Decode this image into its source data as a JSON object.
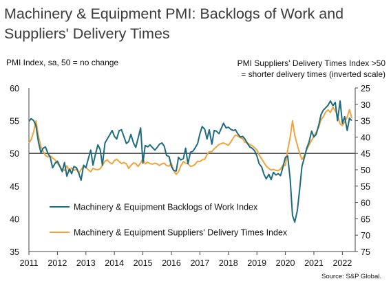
{
  "page": {
    "title": "Machinery & Equipment PMI: Backlogs of Work and Suppliers' Delivery Times",
    "left_axis_label": "PMI Index, sa, 50 = no change",
    "right_axis_label_line1": "PMI Suppliers' Delivery Times Index >50",
    "right_axis_label_line2": "= shorter delivery times (inverted scale)",
    "source": "Source: S&P Global."
  },
  "chart_data": {
    "type": "line",
    "title": "Machinery & Equipment PMI: Backlogs of Work and Suppliers' Delivery Times",
    "ylabel": "PMI Index, sa, 50 = no change",
    "ylabel_right": "PMI Suppliers' Delivery Times Index >50 = shorter delivery times (inverted scale)",
    "x_ticks": [
      "2011",
      "2012",
      "2013",
      "2014",
      "2015",
      "2016",
      "2017",
      "2018",
      "2019",
      "2020",
      "2021",
      "2022"
    ],
    "xlim": [
      2011.0,
      2022.45
    ],
    "ylim": [
      35,
      60
    ],
    "y_ticks": [
      35,
      40,
      45,
      50,
      55,
      60
    ],
    "ylim_right": [
      75,
      25
    ],
    "y_ticks_right": [
      25,
      30,
      35,
      40,
      45,
      50,
      55,
      60,
      65,
      70,
      75
    ],
    "reference_line": 50,
    "legend_position": "lower-left",
    "series": [
      {
        "name": "Machinery & Equipment Backlogs of Work Index",
        "color": "#1c6b7e",
        "axis": "left",
        "points": [
          [
            2011.0,
            54.9
          ],
          [
            2011.08,
            55.3
          ],
          [
            2011.17,
            55.0
          ],
          [
            2011.25,
            54.2
          ],
          [
            2011.33,
            51.8
          ],
          [
            2011.42,
            50.1
          ],
          [
            2011.5,
            50.8
          ],
          [
            2011.58,
            51.0
          ],
          [
            2011.67,
            50.0
          ],
          [
            2011.75,
            49.4
          ],
          [
            2011.83,
            47.8
          ],
          [
            2011.92,
            48.5
          ],
          [
            2012.0,
            48.8
          ],
          [
            2012.08,
            48.1
          ],
          [
            2012.17,
            47.2
          ],
          [
            2012.25,
            48.6
          ],
          [
            2012.33,
            46.5
          ],
          [
            2012.42,
            47.6
          ],
          [
            2012.5,
            46.9
          ],
          [
            2012.58,
            48.0
          ],
          [
            2012.67,
            47.8
          ],
          [
            2012.75,
            47.0
          ],
          [
            2012.83,
            45.9
          ],
          [
            2012.92,
            48.2
          ],
          [
            2013.0,
            47.8
          ],
          [
            2013.08,
            49.1
          ],
          [
            2013.17,
            50.5
          ],
          [
            2013.25,
            48.2
          ],
          [
            2013.33,
            49.8
          ],
          [
            2013.42,
            51.3
          ],
          [
            2013.5,
            50.6
          ],
          [
            2013.58,
            48.2
          ],
          [
            2013.67,
            51.6
          ],
          [
            2013.75,
            52.2
          ],
          [
            2013.83,
            52.8
          ],
          [
            2013.92,
            53.5
          ],
          [
            2014.0,
            52.6
          ],
          [
            2014.08,
            52.2
          ],
          [
            2014.17,
            53.5
          ],
          [
            2014.25,
            53.6
          ],
          [
            2014.33,
            52.6
          ],
          [
            2014.42,
            51.5
          ],
          [
            2014.5,
            51.8
          ],
          [
            2014.58,
            52.9
          ],
          [
            2014.67,
            51.6
          ],
          [
            2014.75,
            50.9
          ],
          [
            2014.83,
            52.3
          ],
          [
            2014.92,
            53.9
          ],
          [
            2015.0,
            48.5
          ],
          [
            2015.08,
            51.2
          ],
          [
            2015.17,
            51.0
          ],
          [
            2015.25,
            51.3
          ],
          [
            2015.33,
            50.9
          ],
          [
            2015.42,
            50.5
          ],
          [
            2015.5,
            50.9
          ],
          [
            2015.58,
            51.4
          ],
          [
            2015.67,
            51.6
          ],
          [
            2015.75,
            51.1
          ],
          [
            2015.83,
            49.7
          ],
          [
            2015.92,
            49.5
          ],
          [
            2016.0,
            48.0
          ],
          [
            2016.08,
            47.4
          ],
          [
            2016.17,
            47.3
          ],
          [
            2016.25,
            49.4
          ],
          [
            2016.33,
            49.0
          ],
          [
            2016.42,
            49.2
          ],
          [
            2016.5,
            50.8
          ],
          [
            2016.58,
            48.4
          ],
          [
            2016.67,
            50.2
          ],
          [
            2016.75,
            50.3
          ],
          [
            2016.83,
            50.8
          ],
          [
            2016.92,
            51.5
          ],
          [
            2017.0,
            53.0
          ],
          [
            2017.08,
            54.1
          ],
          [
            2017.17,
            53.7
          ],
          [
            2017.25,
            52.2
          ],
          [
            2017.33,
            53.6
          ],
          [
            2017.42,
            51.4
          ],
          [
            2017.5,
            53.5
          ],
          [
            2017.58,
            53.4
          ],
          [
            2017.67,
            53.0
          ],
          [
            2017.75,
            53.8
          ],
          [
            2017.83,
            54.6
          ],
          [
            2017.92,
            53.9
          ],
          [
            2018.0,
            54.0
          ],
          [
            2018.08,
            53.7
          ],
          [
            2018.17,
            53.5
          ],
          [
            2018.25,
            53.6
          ],
          [
            2018.33,
            53.0
          ],
          [
            2018.42,
            52.5
          ],
          [
            2018.5,
            52.6
          ],
          [
            2018.58,
            52.2
          ],
          [
            2018.67,
            51.5
          ],
          [
            2018.75,
            51.0
          ],
          [
            2018.83,
            50.8
          ],
          [
            2018.92,
            50.4
          ],
          [
            2019.0,
            49.6
          ],
          [
            2019.08,
            48.4
          ],
          [
            2019.17,
            47.9
          ],
          [
            2019.25,
            46.8
          ],
          [
            2019.33,
            46.1
          ],
          [
            2019.42,
            46.8
          ],
          [
            2019.5,
            46.0
          ],
          [
            2019.58,
            47.1
          ],
          [
            2019.67,
            46.7
          ],
          [
            2019.75,
            46.9
          ],
          [
            2019.83,
            46.6
          ],
          [
            2019.92,
            48.0
          ],
          [
            2020.0,
            49.4
          ],
          [
            2020.08,
            49.6
          ],
          [
            2020.17,
            46.0
          ],
          [
            2020.25,
            40.5
          ],
          [
            2020.33,
            39.5
          ],
          [
            2020.42,
            41.3
          ],
          [
            2020.5,
            44.5
          ],
          [
            2020.58,
            48.0
          ],
          [
            2020.67,
            49.4
          ],
          [
            2020.75,
            50.8
          ],
          [
            2020.83,
            51.7
          ],
          [
            2020.92,
            53.4
          ],
          [
            2021.0,
            52.5
          ],
          [
            2021.08,
            52.9
          ],
          [
            2021.17,
            54.3
          ],
          [
            2021.25,
            55.9
          ],
          [
            2021.33,
            56.6
          ],
          [
            2021.42,
            57.0
          ],
          [
            2021.5,
            57.4
          ],
          [
            2021.58,
            58.0
          ],
          [
            2021.67,
            57.3
          ],
          [
            2021.75,
            57.8
          ],
          [
            2021.83,
            55.0
          ],
          [
            2021.92,
            58.0
          ],
          [
            2022.0,
            54.6
          ],
          [
            2022.08,
            55.6
          ],
          [
            2022.17,
            53.5
          ],
          [
            2022.25,
            55.4
          ],
          [
            2022.33,
            55.0
          ]
        ]
      },
      {
        "name": "Machinery & Equipment Suppliers' Delivery Times Index",
        "color": "#f0a33b",
        "axis": "right",
        "points": [
          [
            2011.0,
            41.8
          ],
          [
            2011.08,
            40.8
          ],
          [
            2011.17,
            38.3
          ],
          [
            2011.25,
            35.0
          ],
          [
            2011.33,
            39.6
          ],
          [
            2011.42,
            42.9
          ],
          [
            2011.5,
            44.4
          ],
          [
            2011.58,
            45.6
          ],
          [
            2011.67,
            46.1
          ],
          [
            2011.75,
            45.8
          ],
          [
            2011.83,
            46.4
          ],
          [
            2011.92,
            47.0
          ],
          [
            2012.0,
            48.0
          ],
          [
            2012.08,
            49.0
          ],
          [
            2012.17,
            49.9
          ],
          [
            2012.25,
            50.2
          ],
          [
            2012.33,
            48.8
          ],
          [
            2012.42,
            50.5
          ],
          [
            2012.5,
            49.4
          ],
          [
            2012.58,
            50.2
          ],
          [
            2012.67,
            49.8
          ],
          [
            2012.75,
            51.1
          ],
          [
            2012.83,
            50.0
          ],
          [
            2012.92,
            48.9
          ],
          [
            2013.0,
            49.3
          ],
          [
            2013.08,
            50.0
          ],
          [
            2013.17,
            50.6
          ],
          [
            2013.25,
            49.6
          ],
          [
            2013.33,
            49.9
          ],
          [
            2013.42,
            50.0
          ],
          [
            2013.5,
            49.7
          ],
          [
            2013.58,
            48.7
          ],
          [
            2013.67,
            47.4
          ],
          [
            2013.75,
            47.0
          ],
          [
            2013.83,
            47.8
          ],
          [
            2013.92,
            48.2
          ],
          [
            2014.0,
            47.2
          ],
          [
            2014.08,
            46.8
          ],
          [
            2014.17,
            47.5
          ],
          [
            2014.25,
            48.1
          ],
          [
            2014.33,
            47.8
          ],
          [
            2014.42,
            48.2
          ],
          [
            2014.5,
            49.6
          ],
          [
            2014.58,
            48.7
          ],
          [
            2014.67,
            47.9
          ],
          [
            2014.75,
            48.1
          ],
          [
            2014.83,
            49.0
          ],
          [
            2014.92,
            47.9
          ],
          [
            2015.0,
            46.6
          ],
          [
            2015.08,
            48.2
          ],
          [
            2015.17,
            47.7
          ],
          [
            2015.25,
            48.1
          ],
          [
            2015.33,
            48.3
          ],
          [
            2015.42,
            48.0
          ],
          [
            2015.5,
            48.2
          ],
          [
            2015.58,
            48.7
          ],
          [
            2015.67,
            48.2
          ],
          [
            2015.75,
            48.0
          ],
          [
            2015.83,
            48.7
          ],
          [
            2015.92,
            48.9
          ],
          [
            2016.0,
            48.0
          ],
          [
            2016.08,
            50.3
          ],
          [
            2016.17,
            51.4
          ],
          [
            2016.25,
            50.6
          ],
          [
            2016.33,
            48.9
          ],
          [
            2016.42,
            47.5
          ],
          [
            2016.5,
            48.0
          ],
          [
            2016.58,
            48.1
          ],
          [
            2016.67,
            49.0
          ],
          [
            2016.75,
            48.8
          ],
          [
            2016.83,
            48.4
          ],
          [
            2016.92,
            47.4
          ],
          [
            2017.0,
            47.5
          ],
          [
            2017.08,
            47.0
          ],
          [
            2017.17,
            46.8
          ],
          [
            2017.25,
            45.4
          ],
          [
            2017.33,
            44.5
          ],
          [
            2017.42,
            44.5
          ],
          [
            2017.5,
            43.6
          ],
          [
            2017.58,
            43.0
          ],
          [
            2017.67,
            42.3
          ],
          [
            2017.75,
            42.0
          ],
          [
            2017.83,
            41.8
          ],
          [
            2017.92,
            42.2
          ],
          [
            2018.0,
            42.5
          ],
          [
            2018.08,
            41.6
          ],
          [
            2018.17,
            40.3
          ],
          [
            2018.25,
            39.4
          ],
          [
            2018.33,
            39.7
          ],
          [
            2018.42,
            40.2
          ],
          [
            2018.5,
            40.5
          ],
          [
            2018.58,
            41.6
          ],
          [
            2018.67,
            41.8
          ],
          [
            2018.75,
            42.3
          ],
          [
            2018.83,
            42.6
          ],
          [
            2018.92,
            43.3
          ],
          [
            2019.0,
            44.0
          ],
          [
            2019.08,
            45.5
          ],
          [
            2019.17,
            46.7
          ],
          [
            2019.25,
            47.8
          ],
          [
            2019.33,
            48.9
          ],
          [
            2019.42,
            49.6
          ],
          [
            2019.5,
            50.1
          ],
          [
            2019.58,
            49.9
          ],
          [
            2019.67,
            50.2
          ],
          [
            2019.75,
            50.3
          ],
          [
            2019.83,
            49.8
          ],
          [
            2019.92,
            48.5
          ],
          [
            2020.0,
            48.7
          ],
          [
            2020.08,
            44.0
          ],
          [
            2020.17,
            40.0
          ],
          [
            2020.25,
            35.0
          ],
          [
            2020.33,
            39.5
          ],
          [
            2020.42,
            42.5
          ],
          [
            2020.5,
            45.0
          ],
          [
            2020.58,
            46.9
          ],
          [
            2020.67,
            45.6
          ],
          [
            2020.75,
            43.8
          ],
          [
            2020.83,
            42.5
          ],
          [
            2020.92,
            41.0
          ],
          [
            2021.0,
            39.8
          ],
          [
            2021.08,
            38.5
          ],
          [
            2021.17,
            37.0
          ],
          [
            2021.25,
            34.8
          ],
          [
            2021.33,
            33.8
          ],
          [
            2021.42,
            32.3
          ],
          [
            2021.5,
            31.7
          ],
          [
            2021.58,
            32.5
          ],
          [
            2021.67,
            30.9
          ],
          [
            2021.75,
            32.0
          ],
          [
            2021.83,
            33.3
          ],
          [
            2021.92,
            36.0
          ],
          [
            2022.0,
            36.5
          ],
          [
            2022.08,
            35.4
          ],
          [
            2022.17,
            33.9
          ],
          [
            2022.25,
            31.6
          ],
          [
            2022.33,
            34.2
          ]
        ]
      }
    ]
  }
}
